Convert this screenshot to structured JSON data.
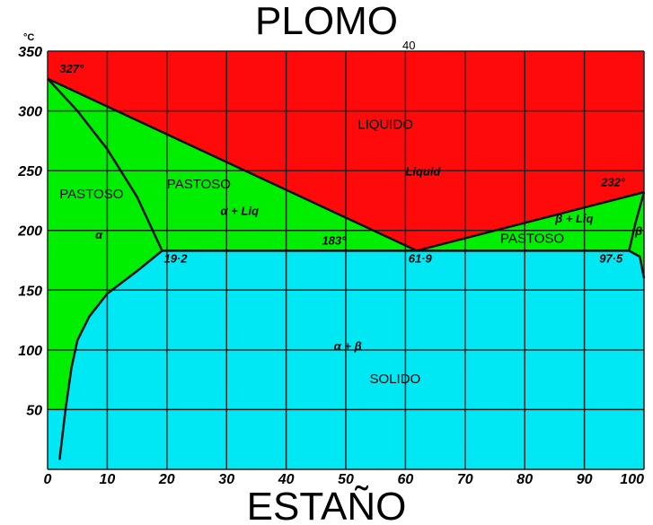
{
  "top_title": "PLOMO",
  "top_small_label": "40",
  "bottom_title": "ESTAÑO",
  "chart_data": {
    "type": "phase-diagram",
    "y_unit": "°C",
    "xlim": [
      0,
      100
    ],
    "ylim": [
      0,
      350
    ],
    "x_ticks": [
      "0",
      "10",
      "20",
      "30",
      "40",
      "50",
      "60",
      "70",
      "80",
      "90",
      "100"
    ],
    "y_ticks": [
      "50",
      "100",
      "150",
      "200",
      "250",
      "300",
      "350"
    ],
    "grid": true,
    "colors": {
      "liquid": "#ff0a0a",
      "pasty": "#00ee00",
      "solid": "#00e8f4",
      "line": "#111111"
    },
    "boundaries": {
      "liquidus": [
        [
          0,
          327
        ],
        [
          61.9,
          183
        ],
        [
          100,
          232
        ]
      ],
      "alpha_solidus": [
        [
          0,
          327
        ],
        [
          5,
          300
        ],
        [
          10,
          268
        ],
        [
          15,
          228
        ],
        [
          19.2,
          183
        ]
      ],
      "eutectic": [
        [
          19.2,
          183
        ],
        [
          97.5,
          183
        ]
      ],
      "alpha_solvus": [
        [
          19.2,
          183
        ],
        [
          15,
          166
        ],
        [
          10,
          147
        ],
        [
          7,
          128
        ],
        [
          5,
          108
        ],
        [
          4,
          85
        ],
        [
          3,
          50
        ],
        [
          2,
          8
        ]
      ],
      "beta_solidus": [
        [
          100,
          232
        ],
        [
          98.5,
          205
        ],
        [
          97.5,
          183
        ]
      ],
      "beta_solvus": [
        [
          97.5,
          183
        ],
        [
          99.3,
          178
        ],
        [
          100,
          160
        ]
      ]
    },
    "labels": [
      {
        "text": "327°",
        "x": 2,
        "y": 332,
        "style": "italic"
      },
      {
        "text": "LIQUIDO",
        "x": 52,
        "y": 285,
        "style": "normal"
      },
      {
        "text": "Liquid",
        "x": 60,
        "y": 246,
        "style": "italic"
      },
      {
        "text": "PASTOSO",
        "x": 2,
        "y": 227,
        "style": "normal"
      },
      {
        "text": "PASTOSO",
        "x": 20,
        "y": 235,
        "style": "normal"
      },
      {
        "text": "α + Liq",
        "x": 29,
        "y": 213,
        "style": "italic"
      },
      {
        "text": "α",
        "x": 8,
        "y": 193,
        "style": "italic"
      },
      {
        "text": "183°",
        "x": 46,
        "y": 188,
        "style": "italic"
      },
      {
        "text": "19·2",
        "x": 19.5,
        "y": 173,
        "style": "italic"
      },
      {
        "text": "61·9",
        "x": 60.5,
        "y": 173,
        "style": "italic"
      },
      {
        "text": "97·5",
        "x": 92.5,
        "y": 173,
        "style": "italic"
      },
      {
        "text": "232°",
        "x": 92.8,
        "y": 237,
        "style": "italic"
      },
      {
        "text": "PASTOSO",
        "x": 76.5,
        "y": 194,
        "style": "normal"
      },
      {
        "text": "β + Liq",
        "x": 84.5,
        "y": 199,
        "style": "italic"
      },
      {
        "text": "β",
        "x": 98.5,
        "y": 196,
        "style": "italic"
      },
      {
        "text": "α + β",
        "x": 48,
        "y": 100,
        "style": "italic"
      },
      {
        "text": "SOLIDO",
        "x": 54,
        "y": 72,
        "style": "normal"
      }
    ]
  }
}
